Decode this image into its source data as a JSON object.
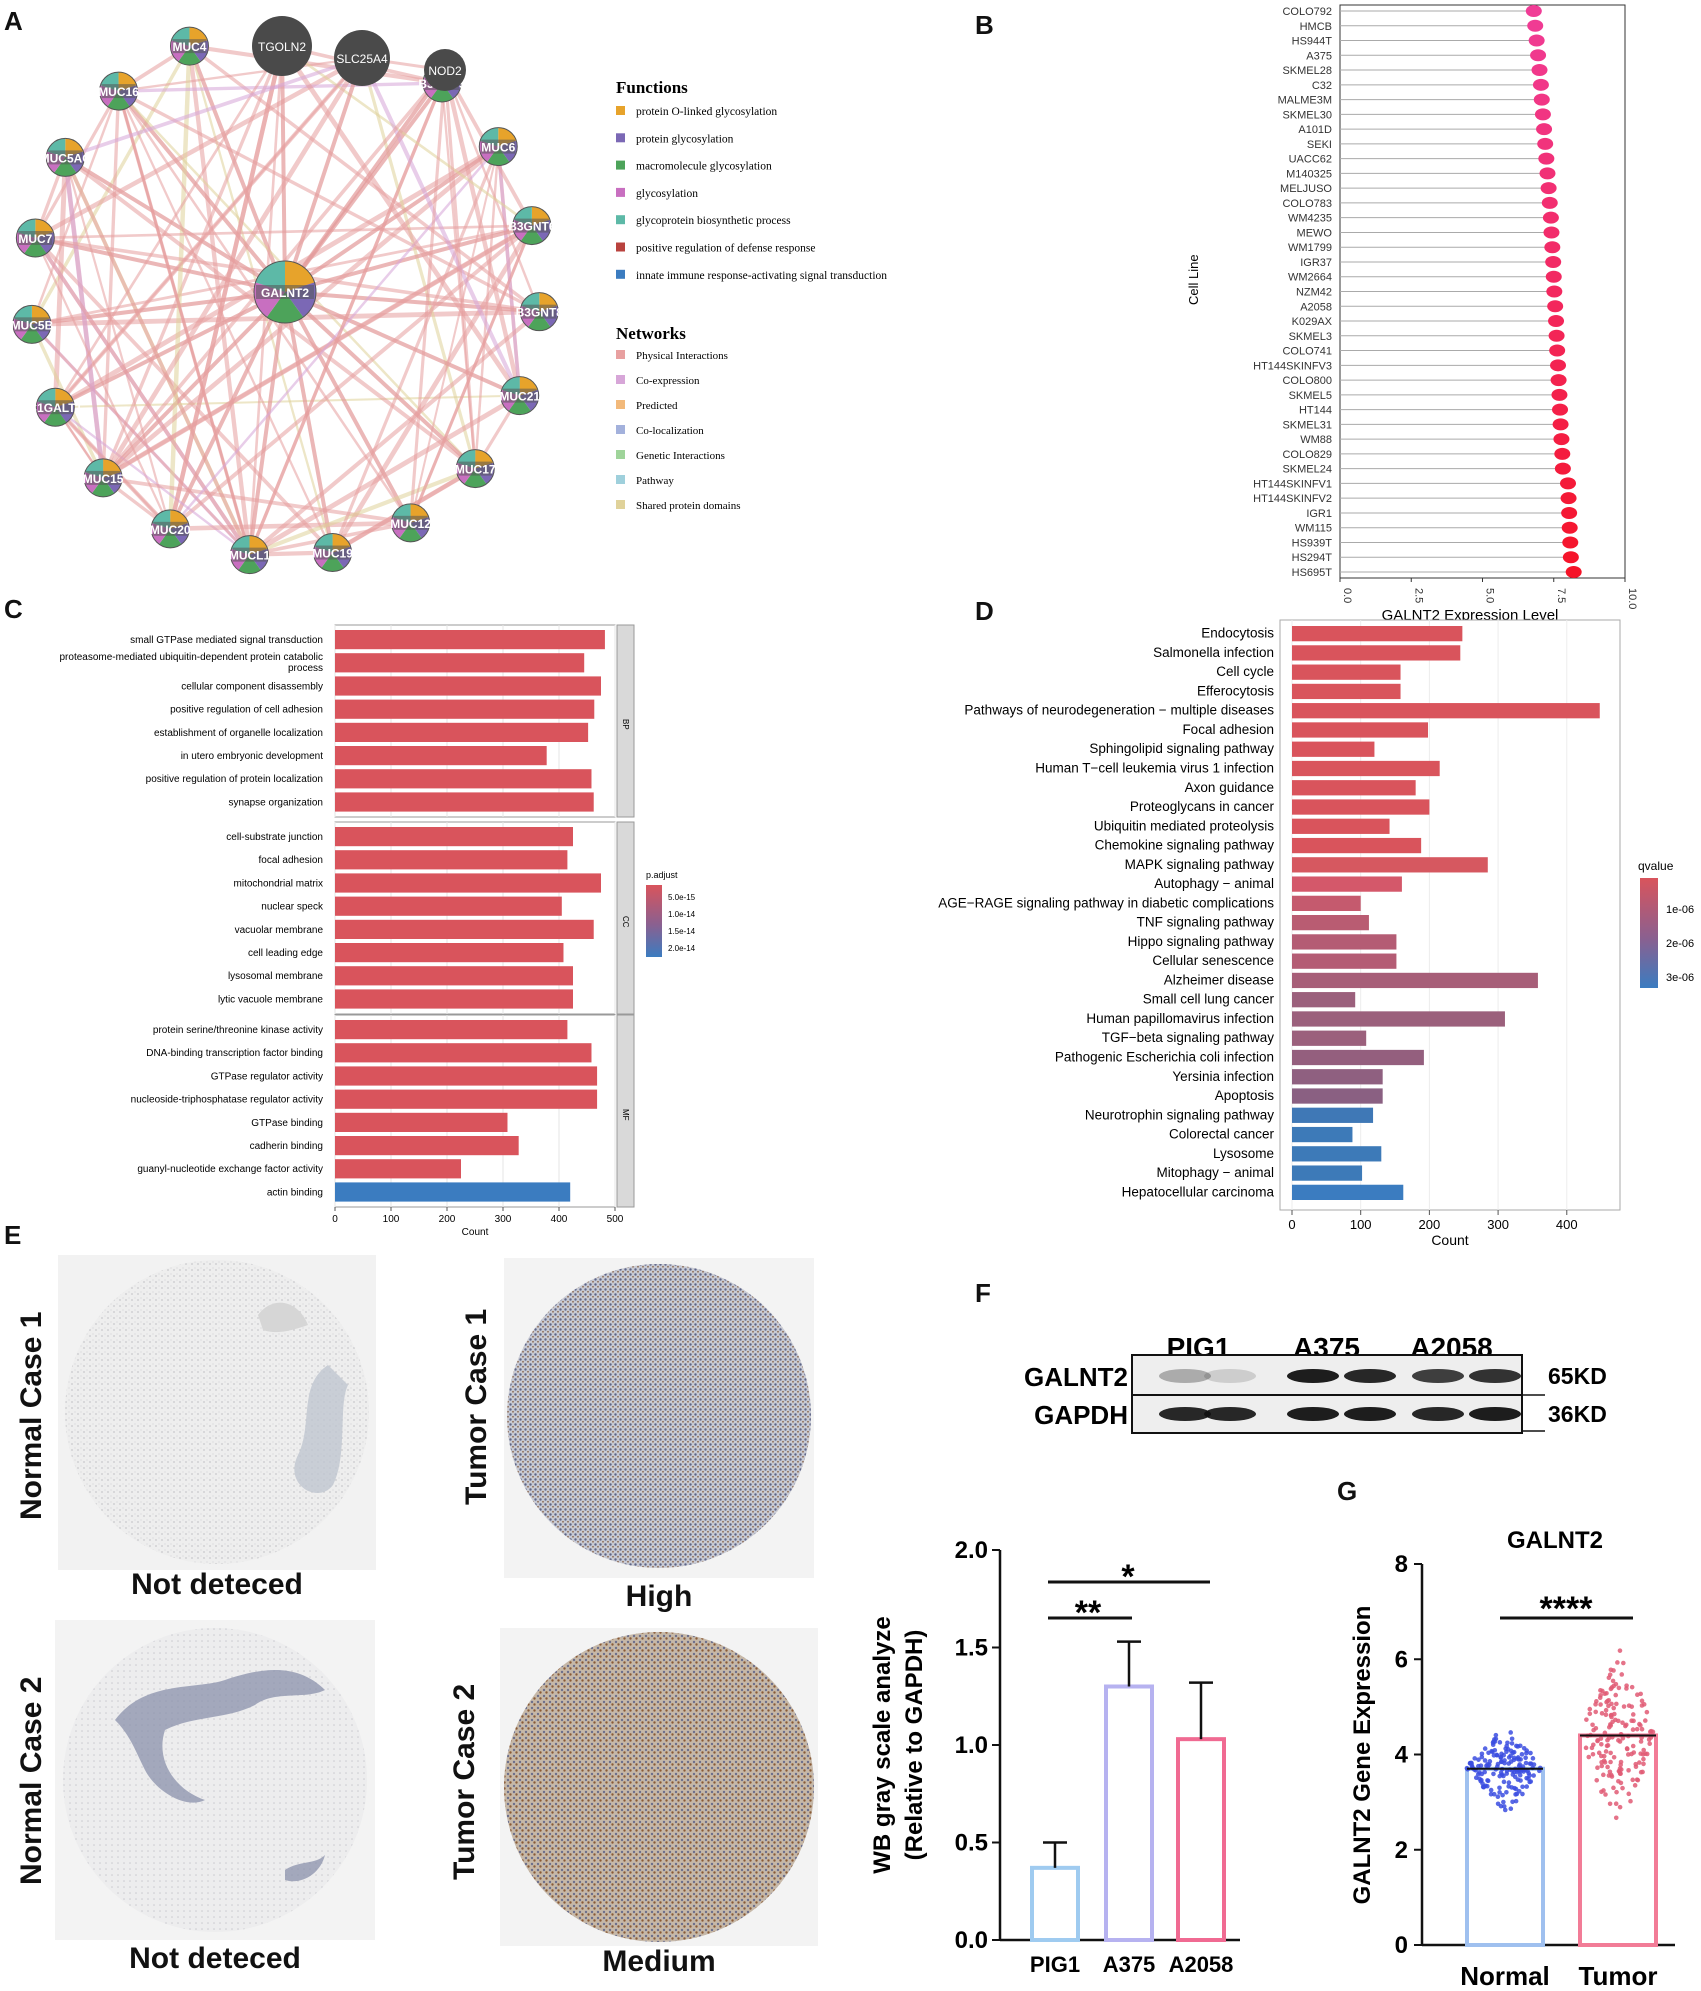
{
  "panels": {
    "A": "A",
    "B": "B",
    "C": "C",
    "D": "D",
    "E": "E",
    "F": "F",
    "G": "G"
  },
  "network": {
    "center": "GALNT2",
    "dark_nodes": [
      "TGOLN2",
      "SLC25A4",
      "NOD2"
    ],
    "ring_nodes": [
      "MUC4",
      "MUC16",
      "MUC5AC",
      "MUC7",
      "MUC5B",
      "C1GALT1",
      "MUC15",
      "MUC20",
      "MUCL1",
      "MUC19",
      "MUC12",
      "MUC17",
      "MUC21",
      "B3GNT8",
      "B3GNT6",
      "MUC6",
      "B3GNT5"
    ],
    "functions_title": "Functions",
    "functions": [
      {
        "label": "protein O-linked glycosylation",
        "color": "#e7a32b"
      },
      {
        "label": "protein glycosylation",
        "color": "#7b68b5"
      },
      {
        "label": "macromolecule glycosylation",
        "color": "#4da35a"
      },
      {
        "label": "glycosylation",
        "color": "#c86fc0"
      },
      {
        "label": "glycoprotein biosynthetic process",
        "color": "#5db9a7"
      },
      {
        "label": "positive regulation of defense response",
        "color": "#b9423e"
      },
      {
        "label": "innate immune response-activating signal transduction",
        "color": "#3b7cc0"
      }
    ],
    "networks_title": "Networks",
    "networks": [
      {
        "label": "Physical Interactions",
        "color": "#e8a0a0"
      },
      {
        "label": "Co-expression",
        "color": "#d7a6d8"
      },
      {
        "label": "Predicted",
        "color": "#f2b97a"
      },
      {
        "label": "Co-localization",
        "color": "#a3b1dc"
      },
      {
        "label": "Genetic Interactions",
        "color": "#9fd49a"
      },
      {
        "label": "Pathway",
        "color": "#9fd0dc"
      },
      {
        "label": "Shared protein domains",
        "color": "#e0d29a"
      }
    ]
  },
  "chart_data": [
    {
      "id": "B",
      "type": "scatter",
      "title": "",
      "xlabel": "GALNT2 Expression Level",
      "ylabel": "Cell Line",
      "xlim": [
        0,
        10
      ],
      "xticks": [
        "0.0",
        "2.5",
        "5.0",
        "7.5",
        "10.0"
      ],
      "categories": [
        "COLO792",
        "HMCB",
        "HS944T",
        "A375",
        "SKMEL28",
        "C32",
        "MALME3M",
        "SKMEL30",
        "A101D",
        "SEKI",
        "UACC62",
        "M140325",
        "MELJUSO",
        "COLO783",
        "WM4235",
        "MEWO",
        "WM1799",
        "IGR37",
        "WM2664",
        "NZM42",
        "A2058",
        "K029AX",
        "SKMEL3",
        "COLO741",
        "HT144SKINFV3",
        "COLO800",
        "SKMEL5",
        "HT144",
        "SKMEL31",
        "WM88",
        "COLO829",
        "SKMEL24",
        "HT144SKINFV1",
        "HT144SKINFV2",
        "IGR1",
        "WM115",
        "HS939T",
        "HS294T",
        "HS695T"
      ],
      "values": [
        6.8,
        6.85,
        6.9,
        6.95,
        7.0,
        7.05,
        7.08,
        7.12,
        7.16,
        7.2,
        7.24,
        7.28,
        7.32,
        7.36,
        7.4,
        7.42,
        7.45,
        7.48,
        7.5,
        7.52,
        7.55,
        7.58,
        7.6,
        7.62,
        7.65,
        7.67,
        7.7,
        7.72,
        7.74,
        7.77,
        7.8,
        7.82,
        8.0,
        8.02,
        8.04,
        8.06,
        8.08,
        8.1,
        8.2
      ]
    },
    {
      "id": "C",
      "type": "bar",
      "xlabel": "Count",
      "legend_title": "p.adjust",
      "legend_ticks": [
        "5.0e-15",
        "1.0e-14",
        "1.5e-14",
        "2.0e-14"
      ],
      "xlim": [
        0,
        500
      ],
      "xticks": [
        "0",
        "100",
        "200",
        "300",
        "400",
        "500"
      ],
      "groups": [
        {
          "name": "BP",
          "categories": [
            "small GTPase mediated signal transduction",
            "proteasome-mediated ubiquitin-dependent protein catabolic process",
            "cellular component disassembly",
            "positive regulation of cell adhesion",
            "establishment of organelle localization",
            "in utero embryonic development",
            "positive regulation of protein localization",
            "synapse organization"
          ],
          "values": [
            482,
            445,
            475,
            463,
            452,
            378,
            458,
            462
          ]
        },
        {
          "name": "CC",
          "categories": [
            "cell-substrate junction",
            "focal adhesion",
            "mitochondrial matrix",
            "nuclear speck",
            "vacuolar membrane",
            "cell leading edge",
            "lysosomal membrane",
            "lytic vacuole membrane"
          ],
          "values": [
            425,
            415,
            475,
            405,
            462,
            408,
            425,
            425
          ]
        },
        {
          "name": "MF",
          "categories": [
            "protein serine/threonine kinase activity",
            "DNA-binding transcription factor binding",
            "GTPase regulator activity",
            "nucleoside-triphosphatase regulator activity",
            "GTPase binding",
            "cadherin binding",
            "guanyl-nucleotide exchange factor activity",
            "actin binding"
          ],
          "values": [
            415,
            458,
            468,
            468,
            308,
            328,
            225,
            420
          ]
        }
      ]
    },
    {
      "id": "D",
      "type": "bar",
      "xlabel": "Count",
      "legend_title": "qvalue",
      "legend_ticks": [
        "1e-06",
        "2e-06",
        "3e-06"
      ],
      "xlim": [
        0,
        460
      ],
      "xticks": [
        "0",
        "100",
        "200",
        "300",
        "400"
      ],
      "categories": [
        "Endocytosis",
        "Salmonella infection",
        "Cell cycle",
        "Efferocytosis",
        "Pathways of neurodegeneration − multiple diseases",
        "Focal adhesion",
        "Sphingolipid signaling pathway",
        "Human T−cell leukemia virus 1 infection",
        "Axon guidance",
        "Proteoglycans in cancer",
        "Ubiquitin mediated proteolysis",
        "Chemokine signaling pathway",
        "MAPK signaling pathway",
        "Autophagy − animal",
        "AGE−RAGE signaling pathway in diabetic complications",
        "TNF signaling pathway",
        "Hippo signaling pathway",
        "Cellular senescence",
        "Alzheimer disease",
        "Small cell lung cancer",
        "Human papillomavirus infection",
        "TGF−beta signaling pathway",
        "Pathogenic Escherichia coli infection",
        "Yersinia infection",
        "Apoptosis",
        "Neurotrophin signaling pathway",
        "Colorectal cancer",
        "Lysosome",
        "Mitophagy − animal",
        "Hepatocellular carcinoma"
      ],
      "values": [
        248,
        245,
        158,
        158,
        448,
        198,
        120,
        215,
        180,
        200,
        142,
        188,
        285,
        160,
        100,
        112,
        152,
        152,
        358,
        92,
        310,
        108,
        192,
        132,
        132,
        118,
        88,
        130,
        102,
        162
      ],
      "colors": [
        "#d9545c",
        "#d9545c",
        "#d9545c",
        "#d9545c",
        "#d9545c",
        "#d9545c",
        "#d9545c",
        "#d9545c",
        "#d9545c",
        "#d9545c",
        "#d9545c",
        "#d9545c",
        "#d65860",
        "#d4586a",
        "#c55a6e",
        "#b95c72",
        "#b45c74",
        "#b45c74",
        "#a75e78",
        "#9b607c",
        "#9b607c",
        "#9b607c",
        "#945f7e",
        "#8f6080",
        "#8a6082",
        "#3f78b6",
        "#3d7ab8",
        "#3d7ab8",
        "#3d7ab8",
        "#3b7cc0"
      ]
    },
    {
      "id": "F_bar",
      "type": "bar",
      "ylabel": "WB gray scale analyze (Relative to GAPDH)",
      "ylim": [
        0,
        2.0
      ],
      "yticks": [
        "0.0",
        "0.5",
        "1.0",
        "1.5",
        "2.0"
      ],
      "categories": [
        "PIG1",
        "A375",
        "A2058"
      ],
      "values": [
        0.37,
        1.3,
        1.03
      ],
      "errors": [
        0.13,
        0.23,
        0.29
      ],
      "colors": [
        "#9fcbf0",
        "#b6b2f0",
        "#f06a92"
      ],
      "annotations": [
        "*",
        "**"
      ]
    },
    {
      "id": "G",
      "type": "scatter",
      "title": "GALNT2",
      "ylabel": "GALNT2 Gene Expression",
      "ylim": [
        0,
        8
      ],
      "yticks": [
        "0",
        "2",
        "4",
        "6",
        "8"
      ],
      "categories": [
        "Normal",
        "Tumor"
      ],
      "values": [
        3.7,
        4.4
      ],
      "colors": [
        "#9fc0ef",
        "#f27c97"
      ],
      "annotation": "****"
    }
  ],
  "wb": {
    "groups": [
      "PIG1",
      "A375",
      "A2058"
    ],
    "rows": [
      {
        "label": "GALNT2",
        "kd": "65KD"
      },
      {
        "label": "GAPDH",
        "kd": "36KD"
      }
    ]
  },
  "ihc": {
    "normal1_label": "Normal Case 1",
    "normal2_label": "Normal Case 2",
    "tumor1_label": "Tumor Case 1",
    "tumor2_label": "Tumor Case 2",
    "normal1_caption": "Not deteced",
    "normal2_caption": "Not deteced",
    "tumor1_caption": "High",
    "tumor2_caption": "Medium"
  }
}
